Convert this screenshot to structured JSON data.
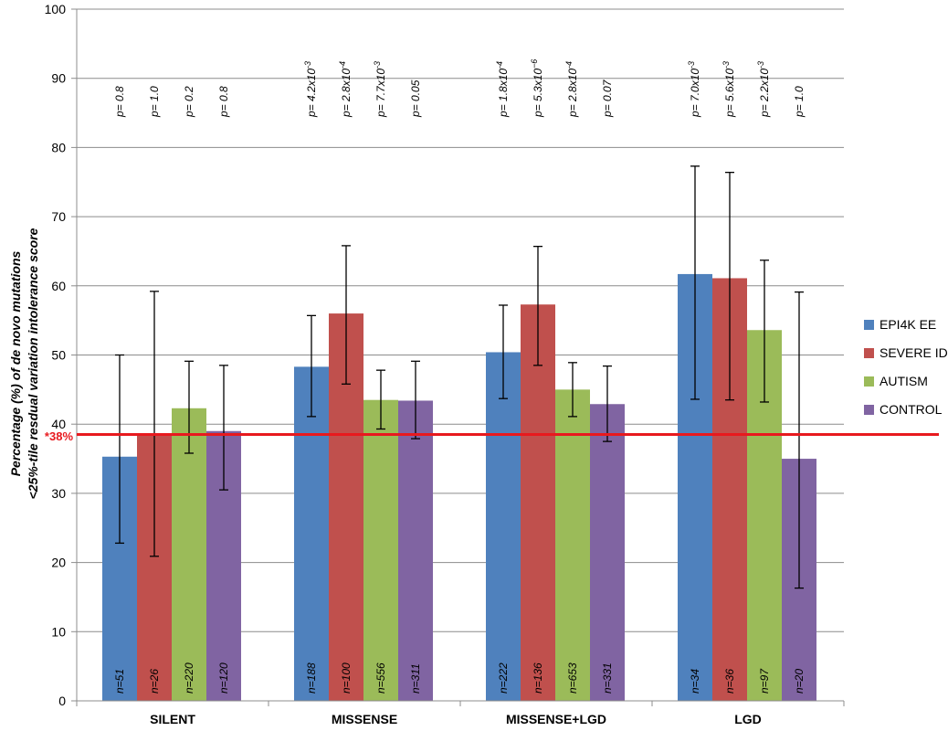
{
  "chart_data": {
    "type": "bar",
    "ylabel_line1": "Percentage (%) of de novo mutations",
    "ylabel_line2": "<25%-tile resdual variation intolerance score",
    "ylim": [
      0,
      100
    ],
    "yticks": [
      "0",
      "10",
      "20",
      "30",
      "40",
      "50",
      "60",
      "70",
      "80",
      "90",
      "100"
    ],
    "categories": [
      "SILENT",
      "MISSENSE",
      "MISSENSE+LGD",
      "LGD"
    ],
    "legend_position": "right",
    "grid": true,
    "reference_line": {
      "value": 38.5,
      "label": "*38%",
      "color": "#e8191e"
    },
    "series": [
      {
        "name": "EPI4K EE",
        "color": "#4f81bd",
        "values": [
          35.3,
          48.3,
          50.4,
          61.7
        ],
        "err_low": [
          22.8,
          41.1,
          43.7,
          43.6
        ],
        "err_high": [
          50.0,
          55.7,
          57.2,
          77.3
        ],
        "n_labels": [
          "n=51",
          "n=188",
          "n=222",
          "n=34"
        ],
        "p_labels": [
          {
            "base": "p= 0.8",
            "sup": ""
          },
          {
            "base": "p= 4.2x10",
            "sup": "-3"
          },
          {
            "base": "p= 1.8x10",
            "sup": "-4"
          },
          {
            "base": "p= 7.0x10",
            "sup": "-3"
          }
        ]
      },
      {
        "name": "SEVERE ID",
        "color": "#c0504d",
        "values": [
          38.5,
          56.0,
          57.3,
          61.1
        ],
        "err_low": [
          20.9,
          45.8,
          48.5,
          43.5
        ],
        "err_high": [
          59.2,
          65.8,
          65.7,
          76.4
        ],
        "n_labels": [
          "n=26",
          "n=100",
          "n=136",
          "n=36"
        ],
        "p_labels": [
          {
            "base": "p= 1.0",
            "sup": ""
          },
          {
            "base": "p= 2.8x10",
            "sup": "-4"
          },
          {
            "base": "p= 5.3x10",
            "sup": "−6"
          },
          {
            "base": "p= 5.6x10",
            "sup": "-3"
          }
        ]
      },
      {
        "name": "AUTISM",
        "color": "#9bbb59",
        "values": [
          42.3,
          43.5,
          45.0,
          53.6
        ],
        "err_low": [
          35.8,
          39.3,
          41.1,
          43.2
        ],
        "err_high": [
          49.1,
          47.8,
          48.9,
          63.7
        ],
        "n_labels": [
          "n=220",
          "n=556",
          "n=653",
          "n=97"
        ],
        "p_labels": [
          {
            "base": "p= 0.2",
            "sup": ""
          },
          {
            "base": "p= 7.7x10",
            "sup": "-3"
          },
          {
            "base": "p= 2.8x10",
            "sup": "-4"
          },
          {
            "base": "p= 2.2x10",
            "sup": "-3"
          }
        ]
      },
      {
        "name": "CONTROL",
        "color": "#8064a2",
        "values": [
          39.0,
          43.4,
          42.9,
          35.0
        ],
        "err_low": [
          30.5,
          37.9,
          37.5,
          16.3
        ],
        "err_high": [
          48.5,
          49.1,
          48.4,
          59.1
        ],
        "n_labels": [
          "n=120",
          "n=311",
          "n=331",
          "n=20"
        ],
        "p_labels": [
          {
            "base": "p= 0.8",
            "sup": ""
          },
          {
            "base": "p= 0.05",
            "sup": ""
          },
          {
            "base": "p= 0.07",
            "sup": ""
          },
          {
            "base": "p= 1.0",
            "sup": ""
          }
        ]
      }
    ]
  }
}
